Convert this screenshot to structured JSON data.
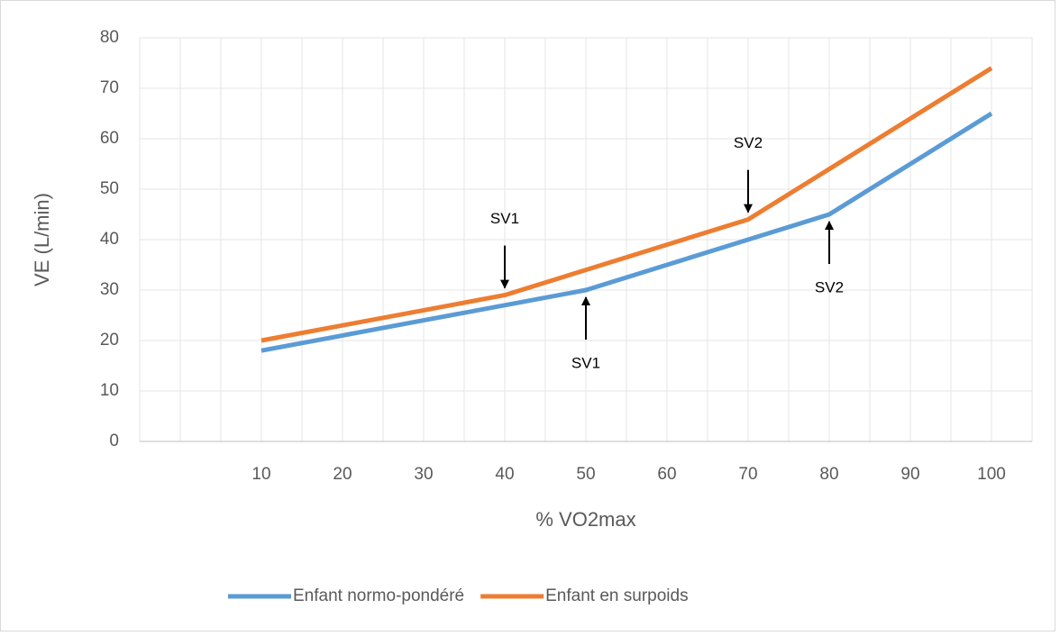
{
  "chart_data": {
    "type": "line",
    "xlabel": "% VO2max",
    "ylabel": "VE (L/min)",
    "categories": [
      null,
      10,
      20,
      30,
      40,
      50,
      60,
      70,
      80,
      90,
      100
    ],
    "series": [
      {
        "name": "Enfant normo-pondéré",
        "color": "#5b9bd5",
        "values": [
          null,
          18,
          21,
          24,
          27,
          30,
          35,
          40,
          45,
          55,
          65
        ]
      },
      {
        "name": "Enfant en surpoids",
        "color": "#ed7d31",
        "values": [
          null,
          20,
          23,
          26,
          29,
          34,
          39,
          44,
          54,
          64,
          74
        ]
      }
    ],
    "ylim": [
      0,
      80
    ],
    "yticks": [
      0,
      10,
      20,
      30,
      40,
      50,
      60,
      70,
      80
    ],
    "grid": true,
    "legend": "bottom",
    "annotations": [
      {
        "text": "SV1",
        "x": 40,
        "y": 29,
        "position": "above"
      },
      {
        "text": "SV1",
        "x": 50,
        "y": 30,
        "position": "below"
      },
      {
        "text": "SV2",
        "x": 70,
        "y": 44,
        "position": "above"
      },
      {
        "text": "SV2",
        "x": 80,
        "y": 45,
        "position": "below"
      }
    ]
  }
}
